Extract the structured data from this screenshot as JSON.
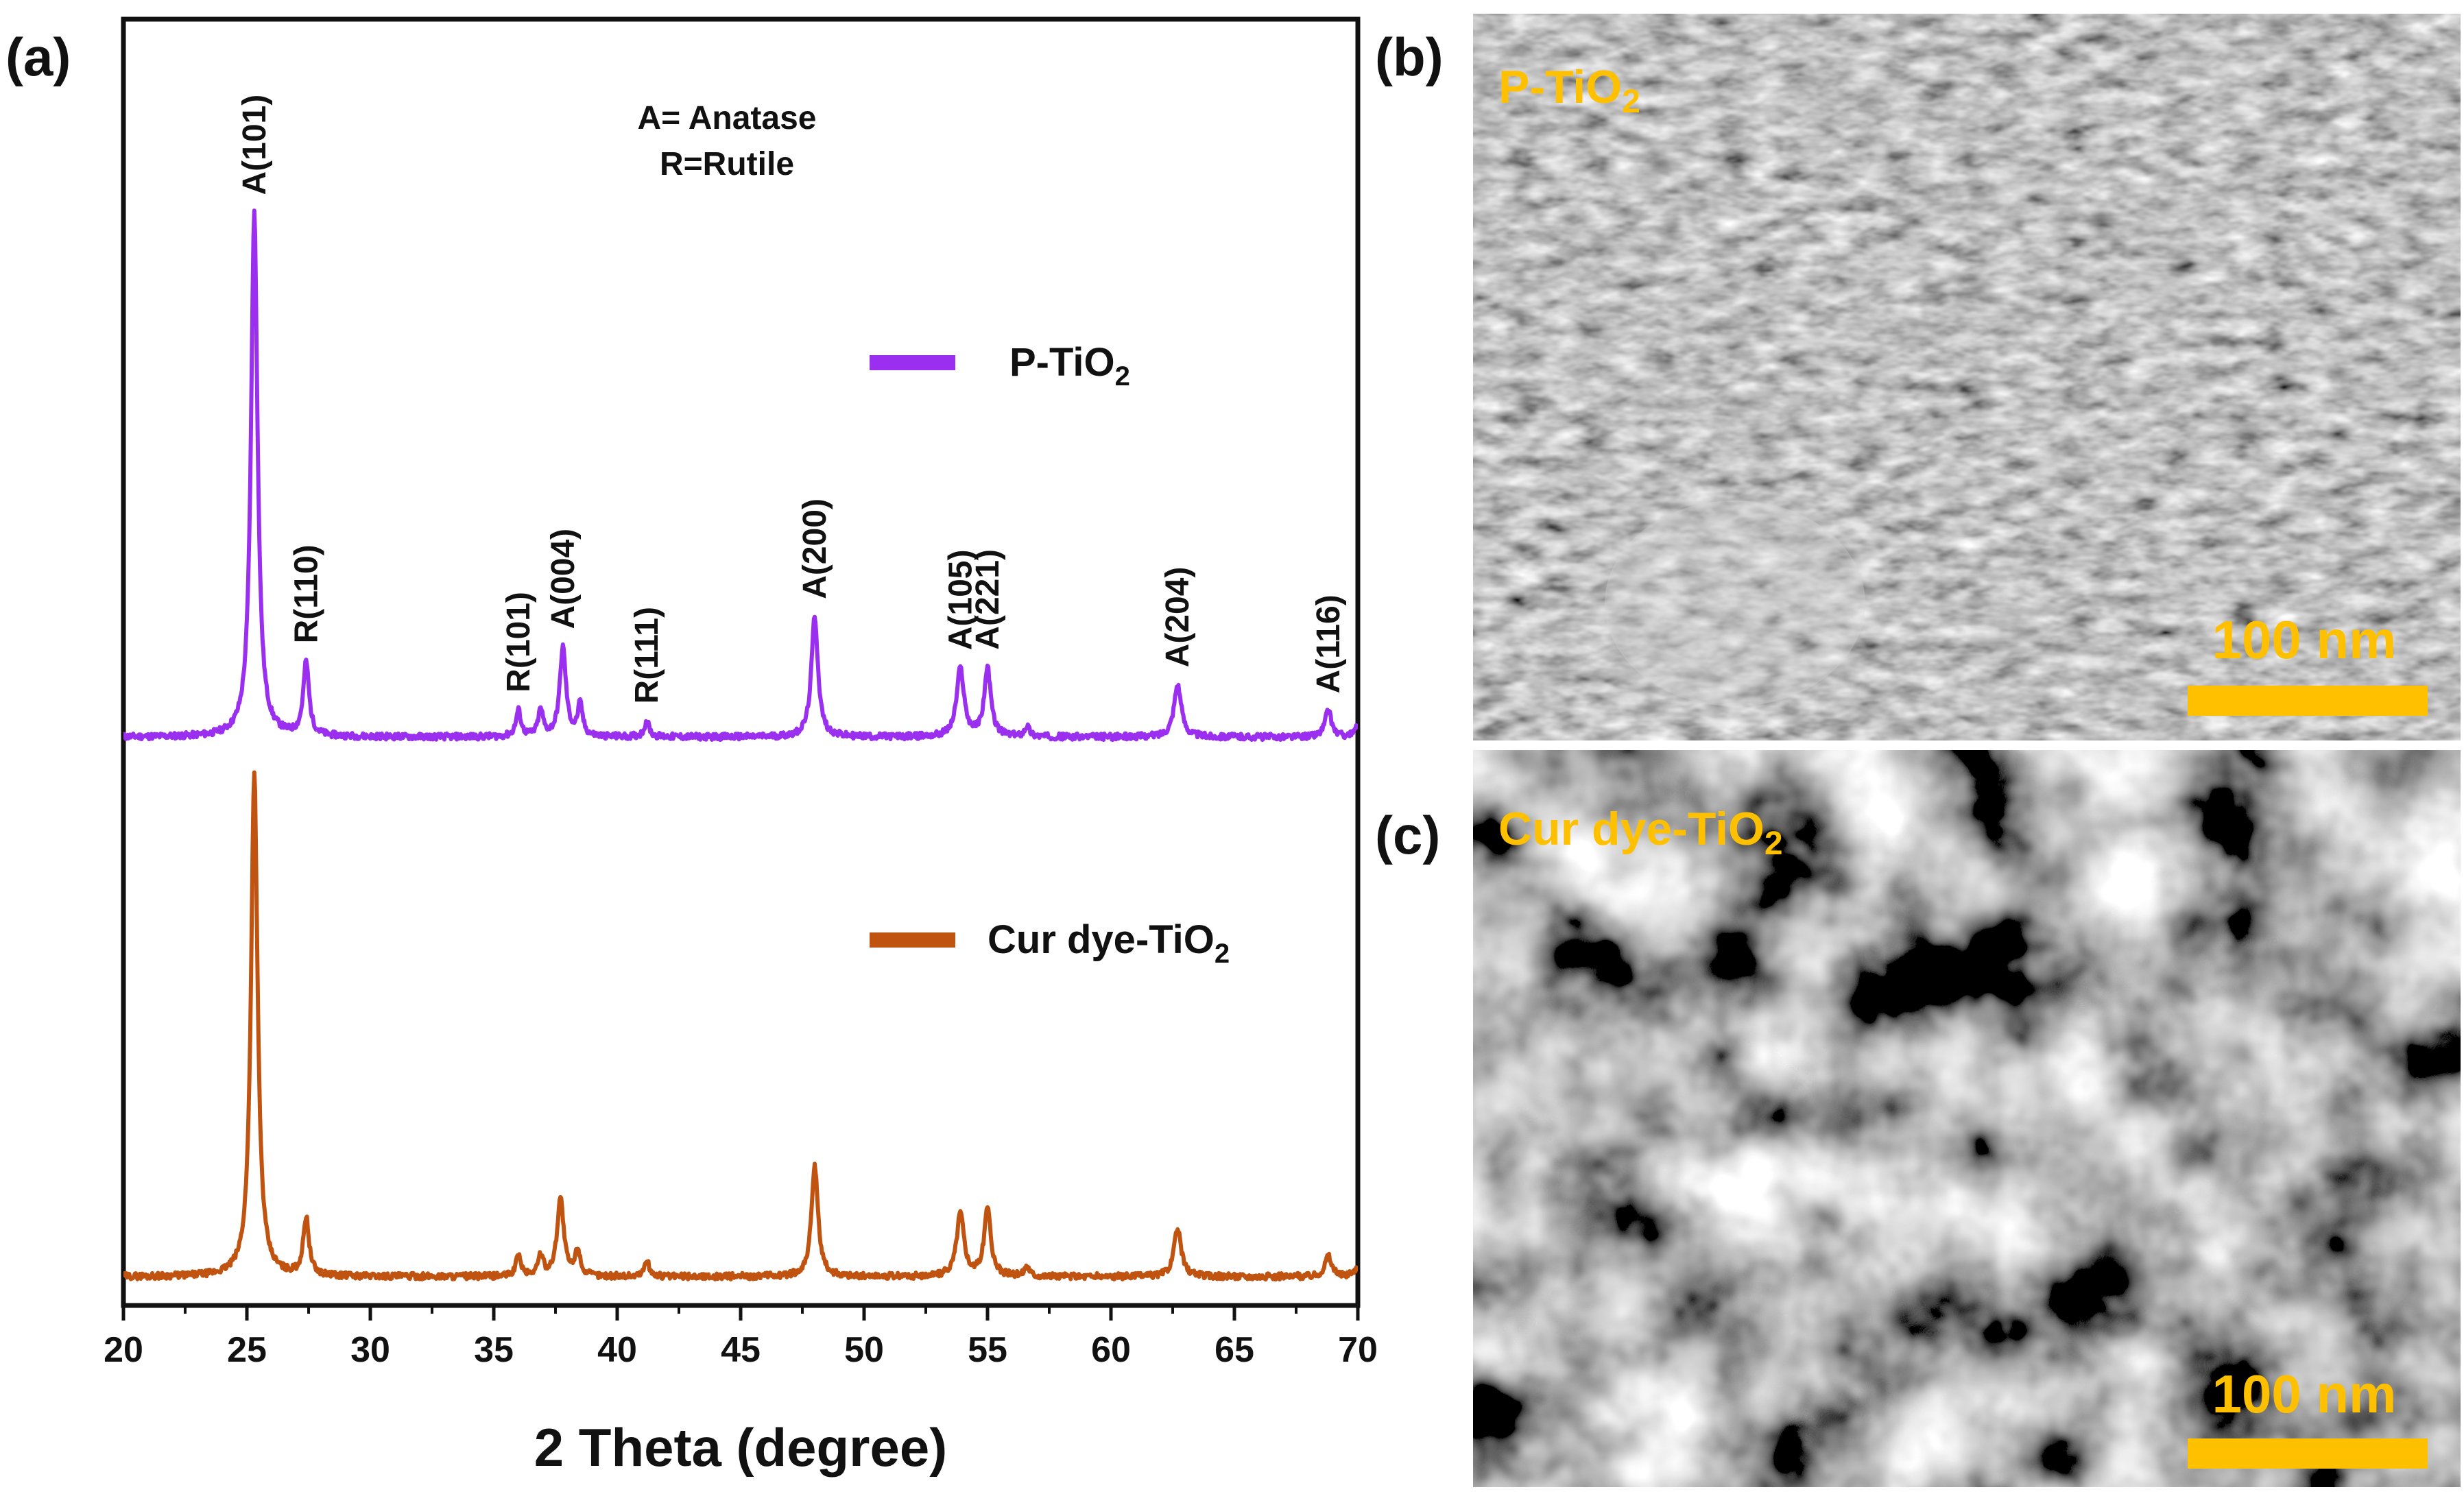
{
  "panels": {
    "a": "(a)",
    "b": "(b)",
    "c": "(c)"
  },
  "colors": {
    "p_tio2": "#9b2ff0",
    "cur_dye": "#c0530f",
    "scale_bar": "#ffc000",
    "axis": "#111111"
  },
  "chart_data": {
    "type": "line",
    "xlabel": "2 Theta (degree)",
    "ylabel": "",
    "xlim": [
      20,
      70
    ],
    "xticks": [
      20,
      25,
      30,
      35,
      40,
      45,
      50,
      55,
      60,
      65,
      70
    ],
    "y_ticks_shown": false,
    "annotation": {
      "line1": "A= Anatase",
      "line2": "R=Rutile"
    },
    "legend": [
      {
        "key": "p",
        "label": "P-TiO",
        "sub": "2"
      },
      {
        "key": "c",
        "label": "Cur dye-TiO",
        "sub": "2"
      }
    ],
    "peak_labels": [
      {
        "label": "A(101)",
        "x": 25.3
      },
      {
        "label": "R(110)",
        "x": 27.4
      },
      {
        "label": "R(101)",
        "x": 36.0
      },
      {
        "label": "A(004)",
        "x": 37.8
      },
      {
        "label": "R(111)",
        "x": 41.2
      },
      {
        "label": "A(200)",
        "x": 48.0
      },
      {
        "label": "A(105)",
        "x": 53.9
      },
      {
        "label": "A(221)",
        "x": 55.0
      },
      {
        "label": "A(204)",
        "x": 62.7
      },
      {
        "label": "A(116)",
        "x": 68.8
      }
    ],
    "series": [
      {
        "name": "P-TiO2",
        "key": "p",
        "offset": 1.05,
        "peaks": [
          {
            "x": 25.3,
            "h": 1.0,
            "w": 0.16
          },
          {
            "x": 27.4,
            "h": 0.14,
            "w": 0.14
          },
          {
            "x": 36.0,
            "h": 0.05,
            "w": 0.12
          },
          {
            "x": 36.9,
            "h": 0.05,
            "w": 0.12
          },
          {
            "x": 37.8,
            "h": 0.17,
            "w": 0.15
          },
          {
            "x": 38.5,
            "h": 0.06,
            "w": 0.12
          },
          {
            "x": 41.2,
            "h": 0.03,
            "w": 0.12
          },
          {
            "x": 48.0,
            "h": 0.23,
            "w": 0.16
          },
          {
            "x": 53.9,
            "h": 0.13,
            "w": 0.18
          },
          {
            "x": 55.0,
            "h": 0.13,
            "w": 0.16
          },
          {
            "x": 56.6,
            "h": 0.02,
            "w": 0.12
          },
          {
            "x": 62.7,
            "h": 0.1,
            "w": 0.18
          },
          {
            "x": 68.8,
            "h": 0.05,
            "w": 0.16
          },
          {
            "x": 70.0,
            "h": 0.02,
            "w": 0.14
          }
        ]
      },
      {
        "name": "Cur dye-TiO2",
        "key": "c",
        "offset": 0.0,
        "peaks": [
          {
            "x": 25.3,
            "h": 0.96,
            "w": 0.16
          },
          {
            "x": 27.4,
            "h": 0.11,
            "w": 0.14
          },
          {
            "x": 36.0,
            "h": 0.04,
            "w": 0.12
          },
          {
            "x": 36.9,
            "h": 0.04,
            "w": 0.12
          },
          {
            "x": 37.7,
            "h": 0.15,
            "w": 0.16
          },
          {
            "x": 38.4,
            "h": 0.05,
            "w": 0.12
          },
          {
            "x": 41.2,
            "h": 0.03,
            "w": 0.12
          },
          {
            "x": 48.0,
            "h": 0.21,
            "w": 0.16
          },
          {
            "x": 53.9,
            "h": 0.12,
            "w": 0.18
          },
          {
            "x": 55.0,
            "h": 0.13,
            "w": 0.16
          },
          {
            "x": 56.6,
            "h": 0.02,
            "w": 0.12
          },
          {
            "x": 62.7,
            "h": 0.09,
            "w": 0.18
          },
          {
            "x": 68.8,
            "h": 0.04,
            "w": 0.16
          },
          {
            "x": 70.0,
            "h": 0.02,
            "w": 0.14
          }
        ]
      }
    ]
  },
  "sem": {
    "b": {
      "title": "P-TiO",
      "sub": "2",
      "scale": "100 nm"
    },
    "c": {
      "title": "Cur dye-TiO",
      "sub": "2",
      "scale": "100 nm"
    }
  }
}
